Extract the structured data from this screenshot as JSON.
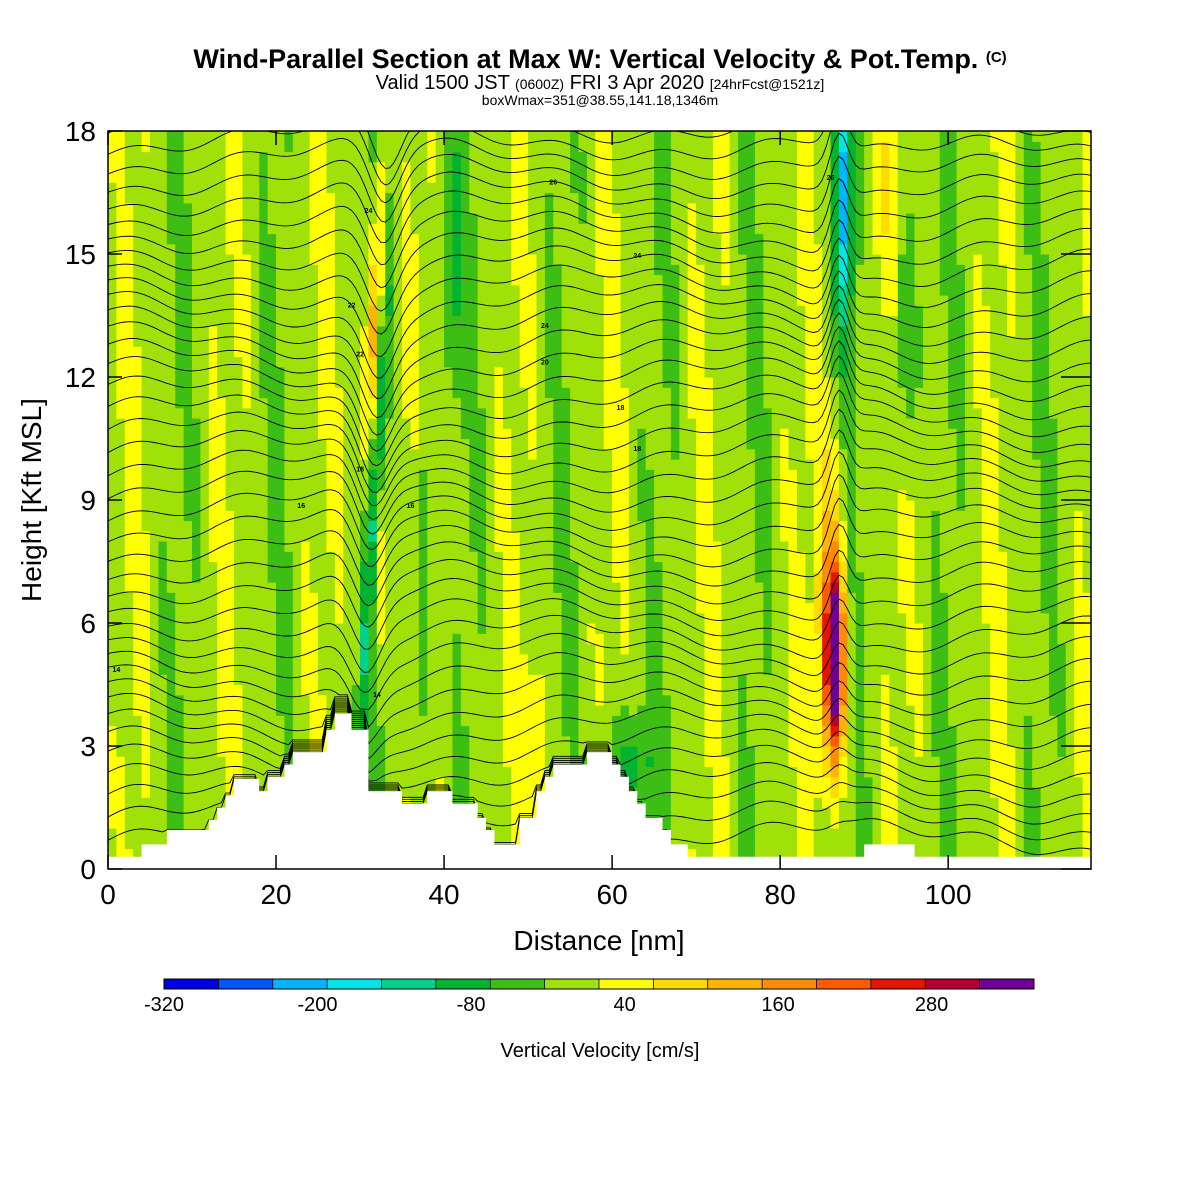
{
  "title": {
    "main": "Wind-Parallel Section at Max W: Vertical Velocity & Pot.Temp.",
    "copyright": "(C)",
    "valid_a": "Valid 1500 JST",
    "valid_z": "(0600Z)",
    "valid_b": "FRI 3 Apr 2020",
    "valid_fcst": "[24hrFcst@1521z]",
    "box": "boxWmax=351@38.55,141.18,1346m"
  },
  "chart_data": {
    "type": "heatmap",
    "xlabel": "Distance [nm]",
    "ylabel": "Height [Kft MSL]",
    "xlim": [
      0,
      117
    ],
    "ylim": [
      0,
      18
    ],
    "x_ticks": [
      "0",
      "20",
      "40",
      "60",
      "80",
      "100"
    ],
    "y_ticks": [
      "0",
      "3",
      "6",
      "9",
      "12",
      "15",
      "18"
    ],
    "colorbar": {
      "label": "Vertical Velocity [cm/s]",
      "range": [
        -320,
        360
      ],
      "tick_labels": [
        "-320",
        "-200",
        "-80",
        "40",
        "160",
        "280"
      ],
      "colors": [
        "#0000e6",
        "#0055ff",
        "#00b4ff",
        "#00e6e6",
        "#00d28c",
        "#00b432",
        "#3cbe14",
        "#a0e10a",
        "#ffff00",
        "#ffdc00",
        "#ffb400",
        "#ff8c00",
        "#ff5a00",
        "#e61400",
        "#b40032",
        "#6e0096"
      ]
    },
    "background_value": 0,
    "updraft_cores": [
      {
        "x": 86.5,
        "z": 5.0,
        "w": 351
      },
      {
        "x": 30,
        "z": 14,
        "w": 160
      }
    ],
    "downdraft_bands": [
      {
        "x": 31,
        "w": -120
      },
      {
        "x": 88,
        "w": -200
      }
    ],
    "terrain": [
      [
        0,
        0.3
      ],
      [
        4,
        0.3
      ],
      [
        4,
        0.6
      ],
      [
        7,
        0.6
      ],
      [
        7,
        0.95
      ],
      [
        12,
        0.95
      ],
      [
        12,
        1.2
      ],
      [
        13,
        1.2
      ],
      [
        13,
        1.5
      ],
      [
        14,
        1.5
      ],
      [
        14,
        1.8
      ],
      [
        15,
        1.8
      ],
      [
        15,
        2.2
      ],
      [
        18,
        2.2
      ],
      [
        18,
        1.9
      ],
      [
        19,
        1.9
      ],
      [
        19,
        2.25
      ],
      [
        21,
        2.25
      ],
      [
        21,
        2.55
      ],
      [
        22,
        2.55
      ],
      [
        22,
        2.85
      ],
      [
        26,
        2.85
      ],
      [
        26,
        3.4
      ],
      [
        27,
        3.4
      ],
      [
        27,
        3.8
      ],
      [
        29,
        3.8
      ],
      [
        29,
        3.4
      ],
      [
        31,
        3.4
      ],
      [
        31,
        1.9
      ],
      [
        35,
        1.9
      ],
      [
        35,
        1.6
      ],
      [
        38,
        1.6
      ],
      [
        38,
        1.9
      ],
      [
        41,
        1.9
      ],
      [
        41,
        1.6
      ],
      [
        44,
        1.6
      ],
      [
        44,
        1.25
      ],
      [
        45,
        1.25
      ],
      [
        45,
        0.95
      ],
      [
        46,
        0.95
      ],
      [
        46,
        0.6
      ],
      [
        49,
        0.6
      ],
      [
        49,
        1.25
      ],
      [
        51,
        1.25
      ],
      [
        51,
        1.9
      ],
      [
        52,
        1.9
      ],
      [
        52,
        2.25
      ],
      [
        53,
        2.25
      ],
      [
        53,
        2.55
      ],
      [
        57,
        2.55
      ],
      [
        57,
        2.85
      ],
      [
        60,
        2.85
      ],
      [
        60,
        2.55
      ],
      [
        61,
        2.55
      ],
      [
        61,
        2.25
      ],
      [
        62,
        2.25
      ],
      [
        62,
        1.9
      ],
      [
        63,
        1.9
      ],
      [
        63,
        1.6
      ],
      [
        64,
        1.6
      ],
      [
        64,
        1.25
      ],
      [
        66,
        1.25
      ],
      [
        66,
        0.95
      ],
      [
        67,
        0.95
      ],
      [
        67,
        0.6
      ],
      [
        69,
        0.6
      ],
      [
        69,
        0.3
      ],
      [
        90,
        0.3
      ],
      [
        90,
        0.6
      ],
      [
        96,
        0.6
      ],
      [
        96,
        0.3
      ],
      [
        117,
        0.3
      ]
    ],
    "theta_labels": [
      "14",
      "16",
      "18",
      "20",
      "22",
      "24",
      "26"
    ]
  }
}
